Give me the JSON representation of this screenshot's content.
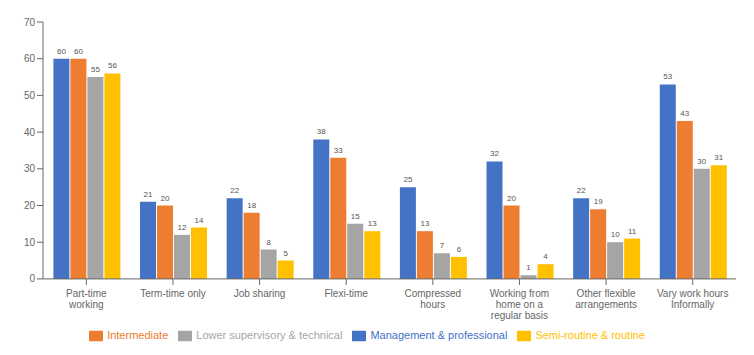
{
  "chart_data": {
    "type": "bar",
    "categories": [
      "Part-time\nworking",
      "Term-time only",
      "Job sharing",
      "Flexi-time",
      "Compressed\nhours",
      "Working from\nhome on a\nregular basis",
      "Other flexible\narrangements",
      "Vary work hours\nInformally"
    ],
    "series": [
      {
        "name": "Management & professional",
        "color": "#4472C4",
        "values": [
          60,
          21,
          22,
          38,
          25,
          32,
          22,
          53
        ]
      },
      {
        "name": "Intermediate",
        "color": "#ED7D31",
        "values": [
          60,
          20,
          18,
          33,
          13,
          20,
          19,
          43
        ]
      },
      {
        "name": "Lower supervisory & technical",
        "color": "#A5A5A5",
        "values": [
          55,
          12,
          8,
          15,
          7,
          1,
          10,
          30
        ]
      },
      {
        "name": "Semi-routine & routine",
        "color": "#FFC000",
        "values": [
          56,
          14,
          5,
          13,
          6,
          4,
          11,
          31
        ]
      }
    ],
    "ylim": [
      0,
      70
    ],
    "yticks": [
      0,
      10,
      20,
      30,
      40,
      50,
      60,
      70
    ],
    "grid": false,
    "legend": "bottom",
    "data_labels": true
  }
}
